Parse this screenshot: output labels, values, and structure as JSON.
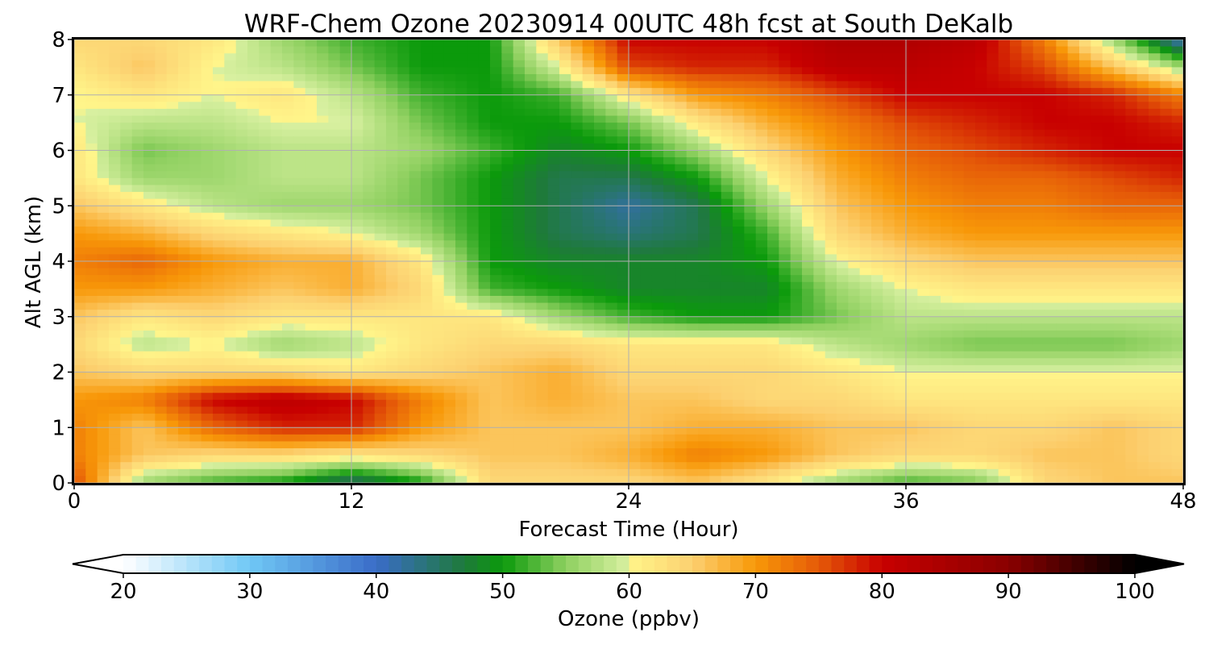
{
  "chart_data": {
    "type": "heatmap",
    "title": "WRF-Chem Ozone  20230914 00UTC 48h fcst at South DeKalb",
    "xlabel": "Forecast Time (Hour)",
    "ylabel": "Alt AGL (km)",
    "xlim": [
      0,
      48
    ],
    "ylim": [
      0,
      8
    ],
    "xticks": [
      0,
      12,
      24,
      36,
      48
    ],
    "yticks": [
      0,
      1,
      2,
      3,
      4,
      5,
      6,
      7,
      8
    ],
    "grid": true,
    "x": [
      0,
      3,
      6,
      9,
      12,
      15,
      18,
      21,
      24,
      27,
      30,
      33,
      36,
      39,
      42,
      45,
      48
    ],
    "y": [
      0,
      0.5,
      1,
      1.5,
      2,
      2.5,
      3,
      3.5,
      4,
      4.5,
      5,
      5.5,
      6,
      6.5,
      7,
      7.5,
      8
    ],
    "z": [
      [
        76,
        56,
        52,
        50,
        44,
        50,
        64,
        64,
        64,
        66,
        62,
        56,
        52,
        54,
        64,
        66,
        66
      ],
      [
        72,
        66,
        64,
        64,
        62,
        64,
        66,
        66,
        68,
        72,
        70,
        66,
        64,
        64,
        66,
        66,
        64
      ],
      [
        72,
        66,
        74,
        78,
        78,
        70,
        66,
        66,
        66,
        68,
        68,
        66,
        66,
        64,
        64,
        66,
        64
      ],
      [
        70,
        72,
        80,
        82,
        80,
        72,
        66,
        68,
        66,
        66,
        64,
        64,
        62,
        62,
        62,
        62,
        62
      ],
      [
        66,
        64,
        64,
        64,
        62,
        64,
        66,
        68,
        64,
        64,
        64,
        62,
        60,
        60,
        60,
        60,
        60
      ],
      [
        64,
        58,
        60,
        56,
        58,
        62,
        64,
        64,
        62,
        62,
        62,
        58,
        56,
        54,
        54,
        54,
        56
      ],
      [
        66,
        62,
        64,
        62,
        62,
        62,
        62,
        56,
        52,
        50,
        50,
        54,
        58,
        58,
        58,
        58,
        58
      ],
      [
        70,
        70,
        68,
        66,
        68,
        64,
        52,
        50,
        48,
        48,
        48,
        56,
        60,
        62,
        62,
        62,
        62
      ],
      [
        72,
        74,
        70,
        68,
        68,
        62,
        50,
        48,
        48,
        48,
        50,
        60,
        64,
        66,
        66,
        66,
        66
      ],
      [
        70,
        68,
        64,
        62,
        60,
        56,
        50,
        46,
        44,
        46,
        52,
        64,
        68,
        70,
        70,
        70,
        70
      ],
      [
        66,
        62,
        58,
        56,
        56,
        54,
        50,
        46,
        42,
        46,
        56,
        66,
        70,
        72,
        72,
        74,
        74
      ],
      [
        62,
        56,
        56,
        58,
        58,
        54,
        50,
        46,
        46,
        50,
        60,
        68,
        72,
        74,
        74,
        76,
        78
      ],
      [
        62,
        54,
        56,
        58,
        58,
        56,
        52,
        48,
        50,
        56,
        64,
        70,
        74,
        76,
        78,
        80,
        80
      ],
      [
        60,
        58,
        58,
        60,
        60,
        54,
        50,
        50,
        54,
        62,
        68,
        72,
        76,
        78,
        80,
        80,
        78
      ],
      [
        60,
        62,
        60,
        62,
        58,
        52,
        50,
        52,
        62,
        70,
        72,
        76,
        80,
        80,
        80,
        78,
        72
      ],
      [
        62,
        66,
        60,
        58,
        54,
        50,
        50,
        60,
        76,
        78,
        78,
        82,
        82,
        80,
        76,
        66,
        56
      ],
      [
        64,
        64,
        62,
        56,
        52,
        50,
        50,
        66,
        80,
        80,
        80,
        84,
        84,
        82,
        72,
        56,
        40
      ]
    ],
    "colorbar": {
      "label": "Ozone  (ppbv)",
      "range": [
        20,
        100
      ],
      "ticks": [
        20,
        30,
        40,
        50,
        60,
        70,
        80,
        90,
        100
      ],
      "extend": "both",
      "stops": [
        [
          20,
          "#ffffff"
        ],
        [
          30,
          "#70c8f5"
        ],
        [
          40,
          "#3a6cc8"
        ],
        [
          47,
          "#1e7a3a"
        ],
        [
          50,
          "#0b9a0b"
        ],
        [
          55,
          "#8fd060"
        ],
        [
          59.9,
          "#d8f0a0"
        ],
        [
          60,
          "#fff58a"
        ],
        [
          65,
          "#fcd070"
        ],
        [
          70,
          "#f89808"
        ],
        [
          75,
          "#e55a08"
        ],
        [
          80,
          "#c80000"
        ],
        [
          90,
          "#8a0000"
        ],
        [
          100,
          "#000000"
        ]
      ]
    }
  }
}
